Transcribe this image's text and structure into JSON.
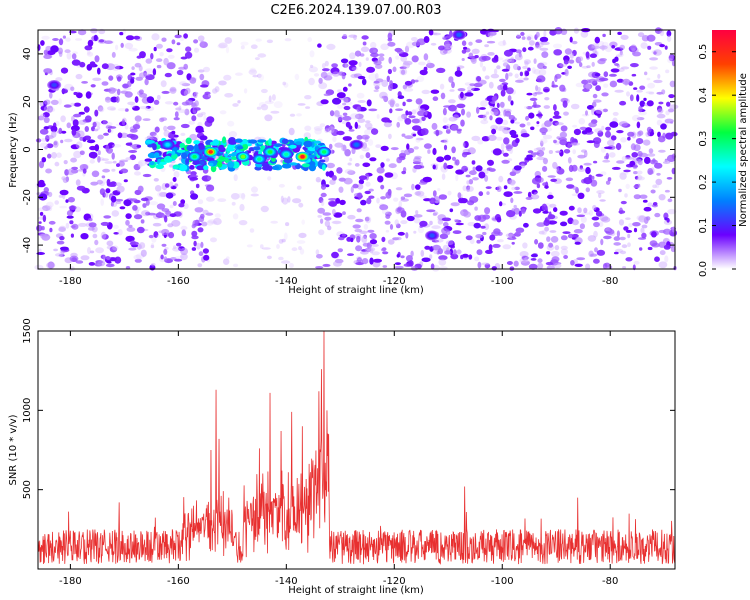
{
  "title": "C2E6.2024.139.07.00.R03",
  "chart_data": [
    {
      "type": "heatmap",
      "xlabel": "Height of straight line (km)",
      "ylabel": "Frequency (Hz)",
      "xlim": [
        -186,
        -68
      ],
      "ylim": [
        -50,
        50
      ],
      "xticks": [
        -180,
        -160,
        -140,
        -120,
        -100,
        -80
      ],
      "yticks": [
        -40,
        -20,
        0,
        20,
        40
      ],
      "colorbar": {
        "label": "Normalized spectral amplitude",
        "range": [
          0.0,
          0.55
        ],
        "ticks": [
          0.0,
          0.1,
          0.2,
          0.3,
          0.4,
          0.5
        ],
        "colormap": [
          "#ffffff",
          "#6a00ff",
          "#0080ff",
          "#00ffff",
          "#00ff40",
          "#ffff00",
          "#ff4000",
          "#ff0040"
        ]
      },
      "background_level": 0.08,
      "signal_band": {
        "x": [
          -166,
          -133
        ],
        "freq": [
          -8,
          4
        ],
        "level": 0.25
      },
      "gaps": [
        {
          "x": [
            -154,
            -134
          ],
          "level": 0.02
        }
      ],
      "hot_spots": [
        {
          "x": -154,
          "y": -1,
          "value": 0.5
        },
        {
          "x": -137,
          "y": -3,
          "value": 0.52
        },
        {
          "x": -148,
          "y": -3,
          "value": 0.35
        },
        {
          "x": -143,
          "y": -1,
          "value": 0.32
        },
        {
          "x": -133,
          "y": -1,
          "value": 0.3
        },
        {
          "x": -157,
          "y": -3,
          "value": 0.3
        },
        {
          "x": -145,
          "y": -4,
          "value": 0.28
        },
        {
          "x": -140,
          "y": -2,
          "value": 0.27
        },
        {
          "x": -162,
          "y": 2,
          "value": 0.22
        },
        {
          "x": -127,
          "y": 2,
          "value": 0.15
        },
        {
          "x": -108,
          "y": 48,
          "value": 0.14
        },
        {
          "x": -183,
          "y": 27,
          "value": 0.12
        },
        {
          "x": -113,
          "y": -36,
          "value": 0.13
        }
      ]
    },
    {
      "type": "line",
      "xlabel": "Height of straight line (km)",
      "ylabel": "SNR (10 * v/v)",
      "xlim": [
        -186,
        -68
      ],
      "ylim": [
        0,
        1500
      ],
      "xticks": [
        -180,
        -160,
        -140,
        -120,
        -100,
        -80
      ],
      "yticks": [
        500,
        1000,
        1500
      ],
      "color": "#e83030",
      "baseline": 140,
      "noise_amplitude": 110,
      "peaks": [
        {
          "x": -153,
          "y": 1130
        },
        {
          "x": -152.5,
          "y": 820
        },
        {
          "x": -154,
          "y": 750
        },
        {
          "x": -143,
          "y": 1110
        },
        {
          "x": -141,
          "y": 870
        },
        {
          "x": -145,
          "y": 760
        },
        {
          "x": -139,
          "y": 990
        },
        {
          "x": -137,
          "y": 900
        },
        {
          "x": -133,
          "y": 1500
        },
        {
          "x": -133.5,
          "y": 1260
        },
        {
          "x": -134,
          "y": 1120
        },
        {
          "x": -132.5,
          "y": 1000
        },
        {
          "x": -107,
          "y": 520
        },
        {
          "x": -86,
          "y": 450
        },
        {
          "x": -171,
          "y": 420
        }
      ],
      "elevated_ranges": [
        {
          "x": [
            -159,
            -150
          ],
          "level": 330
        },
        {
          "x": [
            -148,
            -136
          ],
          "level": 420
        },
        {
          "x": [
            -136,
            -132
          ],
          "level": 600
        }
      ]
    }
  ]
}
